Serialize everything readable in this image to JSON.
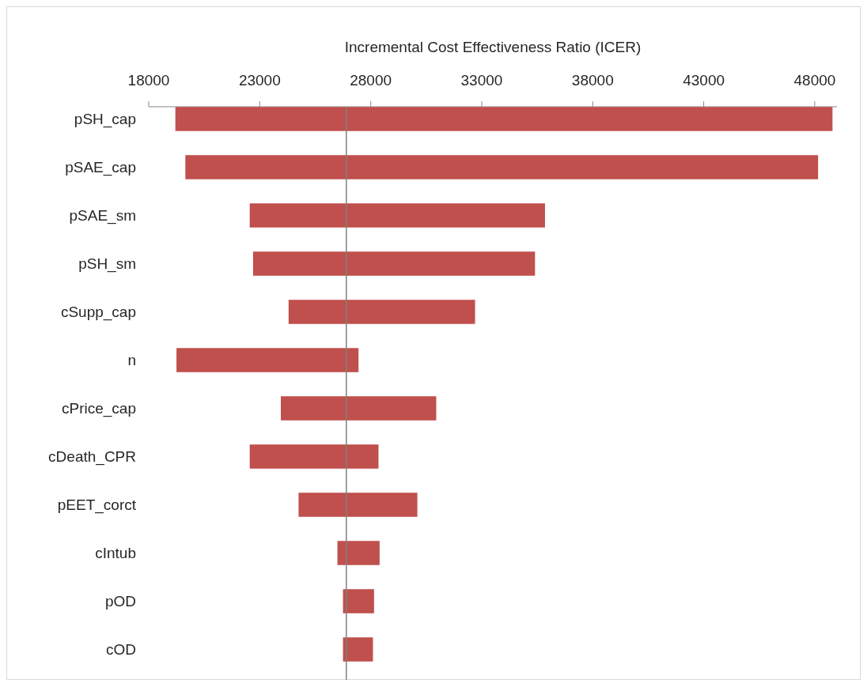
{
  "chart_data": {
    "type": "bar",
    "orientation": "horizontal",
    "xlabel": "Incremental Cost Effectiveness Ratio (ICER)",
    "categories": [
      "pSH_cap",
      "pSAE_cap",
      "pSAE_sm",
      "pSH_sm",
      "cSupp_cap",
      "n",
      "cPrice_cap",
      "cDeath_CPR",
      "pEET_corct",
      "cIntub",
      "pOD",
      "cOD"
    ],
    "base": [
      19200,
      19650,
      22550,
      22700,
      24300,
      19250,
      23950,
      22550,
      24750,
      26500,
      26750,
      26750
    ],
    "values": [
      29600,
      28500,
      13300,
      12700,
      8400,
      8200,
      7000,
      5800,
      5350,
      1900,
      1400,
      1350
    ],
    "color": "#c0504d",
    "xlim": [
      18000,
      49000
    ],
    "xticks": [
      18000,
      23000,
      28000,
      33000,
      38000,
      43000,
      48000
    ],
    "ref_lines": [
      {
        "axis": "x",
        "value": 26900,
        "color": "#808080"
      }
    ],
    "grid": false
  }
}
